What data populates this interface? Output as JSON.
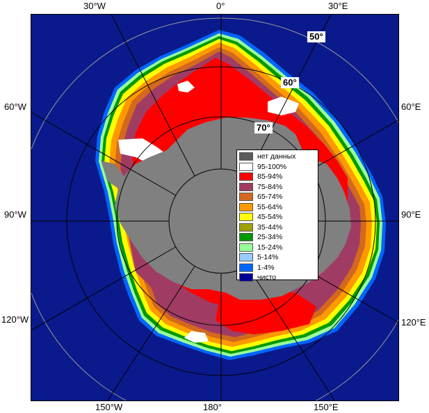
{
  "colors": {
    "ocean": "#0a1a8c",
    "no_data": "#808080",
    "grid": "#b0b0b0"
  },
  "longitude_labels": {
    "top_30w": "30°W",
    "top_0": "0°",
    "top_30e": "30°E",
    "left_60w": "60°W",
    "left_90w": "90°W",
    "left_120w": "120°W",
    "right_60e": "60°E",
    "right_90e": "90°E",
    "right_120e": "120°E",
    "bottom_150w": "150°W",
    "bottom_180": "180°",
    "bottom_150e": "150°E"
  },
  "latitude_labels": {
    "lat_50": "50°",
    "lat_60": "60°",
    "lat_70": "70°"
  },
  "legend": {
    "items": [
      {
        "label": "нет данных",
        "color": "#5a5a5a"
      },
      {
        "label": "95-100%",
        "color": "#ffffff"
      },
      {
        "label": "85-94%",
        "color": "#ff0000"
      },
      {
        "label": "75-84%",
        "color": "#a03c64"
      },
      {
        "label": "65-74%",
        "color": "#d2691e"
      },
      {
        "label": "55-64%",
        "color": "#ff9900"
      },
      {
        "label": "45-54%",
        "color": "#ffff00"
      },
      {
        "label": "35-44%",
        "color": "#a0a000"
      },
      {
        "label": "25-34%",
        "color": "#009900"
      },
      {
        "label": "15-24%",
        "color": "#99ff99"
      },
      {
        "label": "5-14%",
        "color": "#99ccff"
      },
      {
        "label": "1-4%",
        "color": "#0066ff"
      },
      {
        "label": "чисто",
        "color": "#000099"
      }
    ]
  }
}
